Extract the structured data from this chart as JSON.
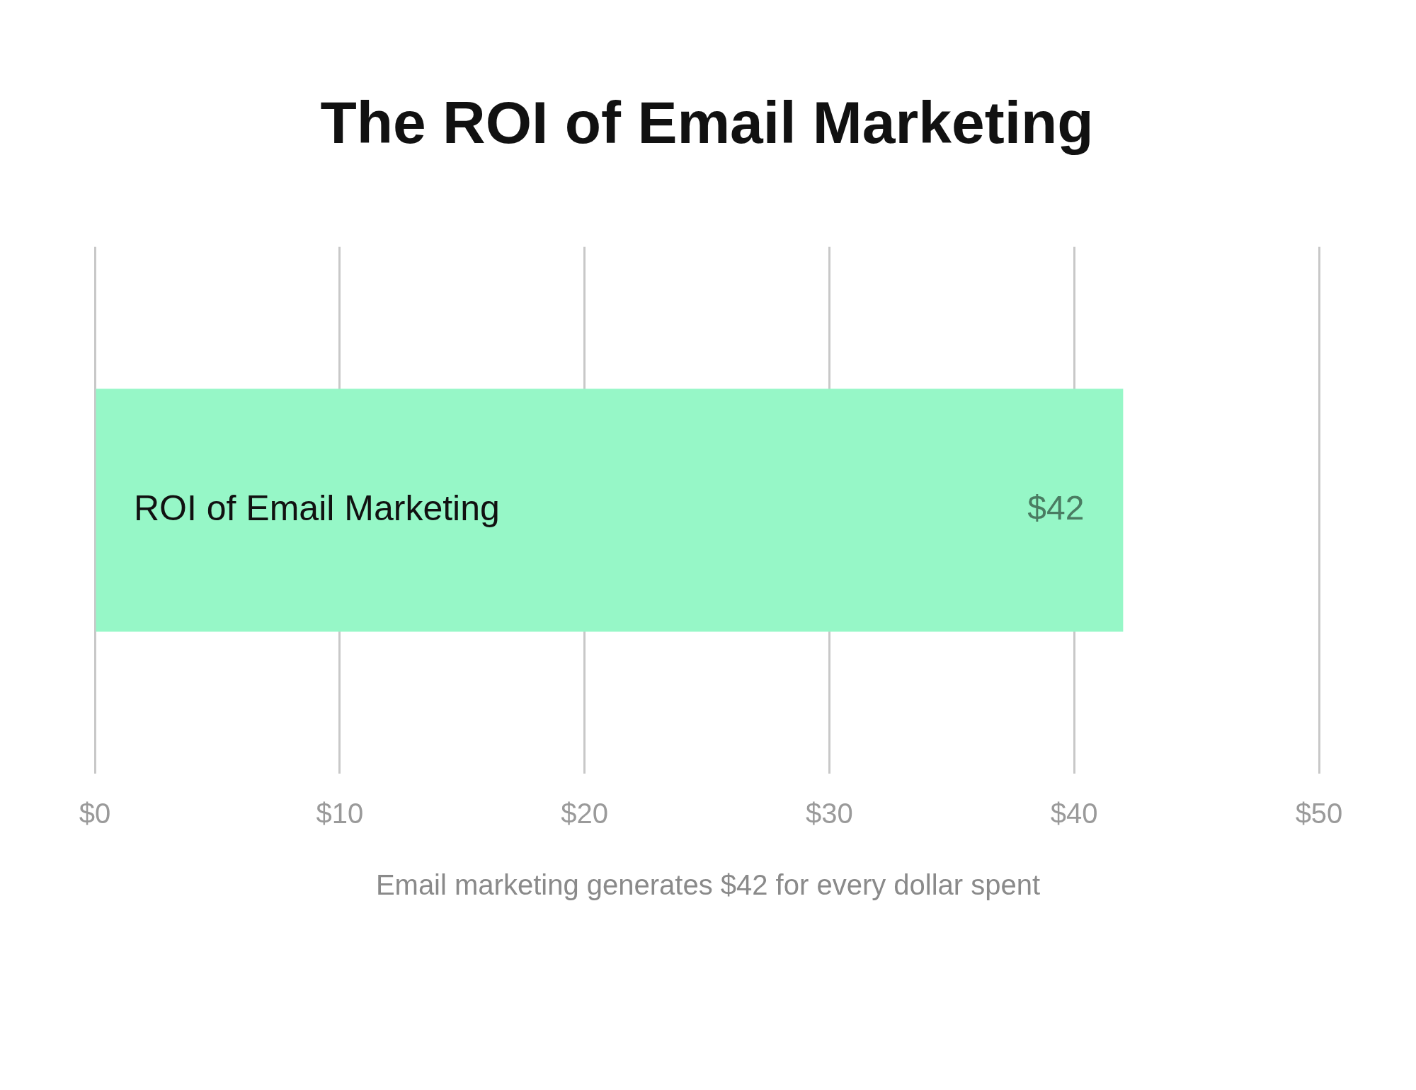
{
  "chart_data": {
    "type": "bar",
    "orientation": "horizontal",
    "title": "The ROI of Email Marketing",
    "categories": [
      "ROI of Email Marketing"
    ],
    "values": [
      42
    ],
    "color": "#96f7c7",
    "value_labels": [
      "$42"
    ],
    "xlim": [
      0,
      50
    ],
    "xticks": [
      {
        "value": 0,
        "label": "$0"
      },
      {
        "value": 10,
        "label": "$10"
      },
      {
        "value": 20,
        "label": "$20"
      },
      {
        "value": 30,
        "label": "$30"
      },
      {
        "value": 40,
        "label": "$40"
      },
      {
        "value": 50,
        "label": "$50"
      }
    ],
    "grid": "x",
    "annotations": [
      "Email marketing generates $42 for every dollar spent"
    ]
  }
}
